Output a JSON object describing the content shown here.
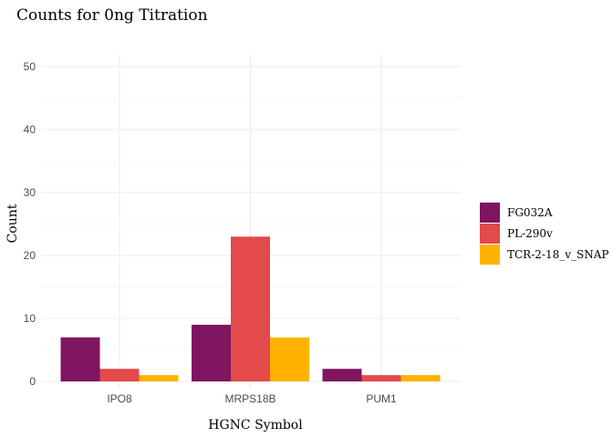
{
  "chart_data": {
    "type": "bar",
    "title": "Counts for 0ng Titration",
    "xlabel": "HGNC Symbol",
    "ylabel": "Count",
    "categories": [
      "IPO8",
      "MRPS18B",
      "PUM1"
    ],
    "series": [
      {
        "name": "FG032A",
        "color": "#7f1560",
        "values": [
          7,
          9,
          2
        ]
      },
      {
        "name": "PL-290v",
        "color": "#e34a4a",
        "values": [
          2,
          23,
          1
        ]
      },
      {
        "name": "TCR-2-18_v_SNAP",
        "color": "#ffb300",
        "values": [
          1,
          7,
          1
        ]
      }
    ],
    "ylim": [
      0,
      52
    ],
    "yticks": [
      0,
      10,
      20,
      30,
      40,
      50
    ],
    "grid": true,
    "legend_position": "right"
  }
}
